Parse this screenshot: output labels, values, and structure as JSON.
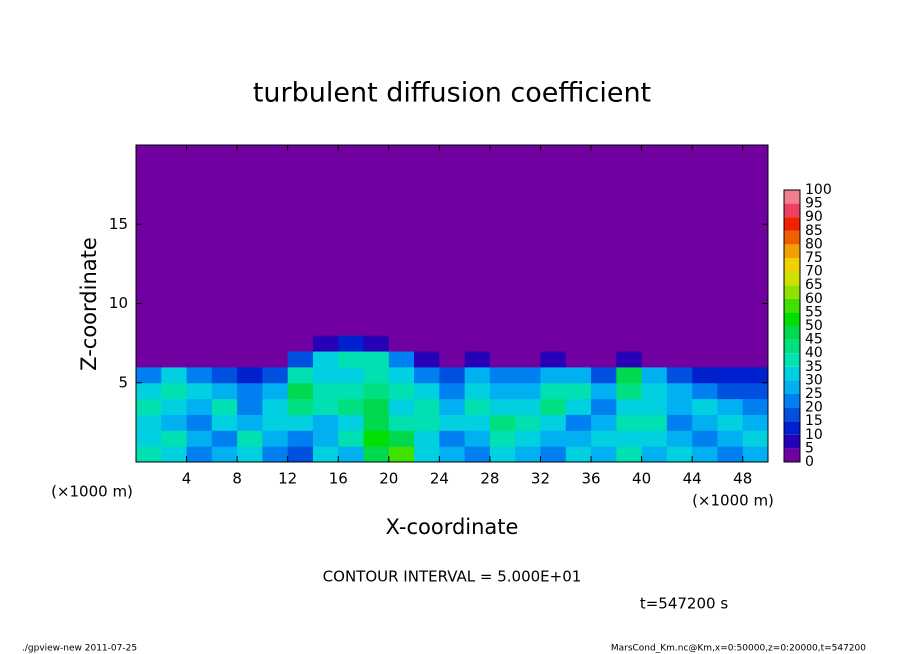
{
  "chart_data": {
    "type": "heatmap",
    "title": "turbulent diffusion coefficient",
    "xlabel": "X-coordinate",
    "ylabel": "Z-coordinate",
    "x_unit_labels": [
      "(×1000 m)",
      "(×1000 m)"
    ],
    "xlim": [
      0,
      50
    ],
    "ylim": [
      0,
      20
    ],
    "xticks": [
      4,
      8,
      12,
      16,
      20,
      24,
      28,
      32,
      36,
      40,
      44,
      48
    ],
    "yticks": [
      5,
      10,
      15
    ],
    "x_edges": [
      0,
      2,
      4,
      6,
      8,
      10,
      12,
      14,
      16,
      18,
      20,
      22,
      24,
      26,
      28,
      30,
      32,
      34,
      36,
      38,
      40,
      42,
      44,
      46,
      48,
      50
    ],
    "y_edges": [
      0,
      1,
      2,
      3,
      4,
      5,
      6,
      7,
      8,
      20
    ],
    "z": [
      [
        35,
        30,
        20,
        25,
        30,
        20,
        15,
        30,
        25,
        45,
        55,
        30,
        25,
        20,
        30,
        25,
        20,
        30,
        25,
        35,
        25,
        30,
        25,
        20,
        25
      ],
      [
        30,
        35,
        25,
        20,
        35,
        25,
        20,
        25,
        35,
        50,
        45,
        30,
        20,
        25,
        35,
        30,
        25,
        25,
        30,
        30,
        30,
        25,
        20,
        25,
        30
      ],
      [
        30,
        25,
        20,
        30,
        25,
        30,
        30,
        25,
        30,
        45,
        35,
        35,
        30,
        30,
        40,
        35,
        30,
        20,
        25,
        35,
        35,
        20,
        25,
        30,
        25
      ],
      [
        35,
        30,
        25,
        35,
        20,
        30,
        40,
        35,
        40,
        45,
        30,
        35,
        25,
        35,
        30,
        30,
        40,
        30,
        20,
        30,
        30,
        25,
        30,
        25,
        20
      ],
      [
        30,
        35,
        30,
        25,
        20,
        25,
        45,
        35,
        35,
        40,
        35,
        30,
        20,
        30,
        25,
        25,
        35,
        35,
        25,
        40,
        30,
        25,
        20,
        15,
        15
      ],
      [
        20,
        30,
        20,
        15,
        10,
        15,
        35,
        30,
        30,
        35,
        30,
        20,
        15,
        25,
        20,
        20,
        25,
        25,
        15,
        45,
        25,
        15,
        10,
        10,
        10
      ],
      [
        0,
        0,
        0,
        0,
        0,
        0,
        15,
        30,
        35,
        35,
        20,
        5,
        0,
        5,
        0,
        0,
        5,
        0,
        0,
        5,
        0,
        0,
        0,
        0,
        0
      ],
      [
        0,
        0,
        0,
        0,
        0,
        0,
        0,
        5,
        10,
        5,
        0,
        0,
        0,
        0,
        0,
        0,
        0,
        0,
        0,
        0,
        0,
        0,
        0,
        0,
        0
      ],
      [
        0,
        0,
        0,
        0,
        0,
        0,
        0,
        0,
        0,
        0,
        0,
        0,
        0,
        0,
        0,
        0,
        0,
        0,
        0,
        0,
        0,
        0,
        0,
        0,
        0
      ]
    ],
    "levels": [
      0,
      5,
      10,
      15,
      20,
      25,
      30,
      35,
      40,
      45,
      50,
      55,
      60,
      65,
      70,
      75,
      80,
      85,
      90,
      95,
      100
    ],
    "colors": [
      "#7000a0",
      "#2800b8",
      "#0020d0",
      "#0050e0",
      "#0080f0",
      "#00b0f0",
      "#00d0e0",
      "#00e0b0",
      "#00e080",
      "#00d850",
      "#00e000",
      "#40e000",
      "#90e000",
      "#d0e000",
      "#f0d000",
      "#f0a000",
      "#f06000",
      "#f02000",
      "#f04060",
      "#f08090"
    ],
    "contour_interval": "CONTOUR INTERVAL = 5.000E+01",
    "time_label": "t=547200 s",
    "footer_left": "./gpview-new  2011-07-25",
    "footer_right": "MarsCond_Km.nc@Km,x=0:50000,z=0:20000,t=547200"
  }
}
